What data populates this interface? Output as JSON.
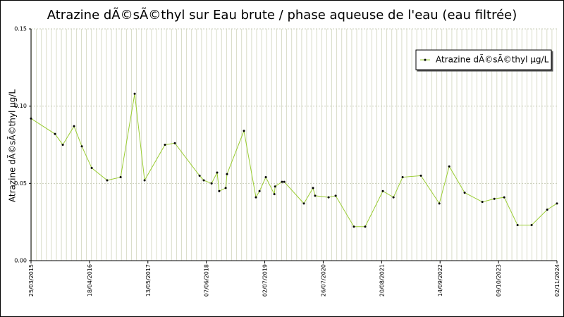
{
  "chart_data": {
    "type": "line",
    "title": "Atrazine dÃ©sÃ©thyl sur Eau brute / phase aqueuse de l'eau (eau filtrée)",
    "y_label": "Atrazine dÃ©sÃ©thyl µg/L",
    "x": [
      "2015-03-25",
      "2015-09-01",
      "2015-10-23",
      "2016-01-06",
      "2016-02-27",
      "2016-05-03",
      "2016-08-14",
      "2016-11-12",
      "2017-02-14",
      "2017-04-21",
      "2017-09-04",
      "2017-11-09",
      "2018-04-23",
      "2018-05-21",
      "2018-07-12",
      "2018-08-18",
      "2018-09-01",
      "2018-10-14",
      "2018-10-23",
      "2019-02-13",
      "2019-05-04",
      "2019-05-28",
      "2019-07-09",
      "2019-09-04",
      "2019-09-09",
      "2019-10-25",
      "2019-11-09",
      "2020-03-19",
      "2020-05-19",
      "2020-06-02",
      "2020-08-31",
      "2020-10-17",
      "2021-02-16",
      "2021-05-02",
      "2021-08-28",
      "2021-11-07",
      "2022-01-07",
      "2022-05-09",
      "2022-09-09",
      "2022-11-14",
      "2023-02-25",
      "2023-06-23",
      "2023-09-11",
      "2023-11-16",
      "2024-02-13",
      "2024-05-17",
      "2024-08-29",
      "2024-11-02"
    ],
    "series": [
      {
        "name": "Atrazine dÃ©sÃ©thyl µg/L",
        "color": "#9acd32",
        "marker_color": "#000000",
        "values": [
          0.092,
          0.082,
          0.075,
          0.087,
          0.074,
          0.06,
          0.052,
          0.054,
          0.108,
          0.052,
          0.075,
          0.076,
          0.055,
          0.052,
          0.05,
          0.057,
          0.045,
          0.047,
          0.056,
          0.084,
          0.041,
          0.045,
          0.054,
          0.043,
          0.048,
          0.051,
          0.051,
          0.037,
          0.047,
          0.042,
          0.041,
          0.042,
          0.022,
          0.022,
          0.045,
          0.041,
          0.054,
          0.055,
          0.037,
          0.061,
          0.044,
          0.038,
          0.04,
          0.041,
          0.023,
          0.023,
          0.033,
          0.037
        ]
      }
    ],
    "xlim": [
      "2015-03-25",
      "2024-11-02"
    ],
    "xticks": [
      {
        "value": "2015-03-25",
        "label": "25/03/2015"
      },
      {
        "value": "2016-04-18",
        "label": "18/04/2016"
      },
      {
        "value": "2017-05-13",
        "label": "13/05/2017"
      },
      {
        "value": "2018-06-07",
        "label": "07/06/2018"
      },
      {
        "value": "2019-07-02",
        "label": "02/07/2019"
      },
      {
        "value": "2020-07-26",
        "label": "26/07/2020"
      },
      {
        "value": "2021-08-20",
        "label": "20/08/2021"
      },
      {
        "value": "2022-09-14",
        "label": "14/09/2022"
      },
      {
        "value": "2023-10-09",
        "label": "09/10/2023"
      },
      {
        "value": "2024-11-02",
        "label": "02/11/2024"
      }
    ],
    "ylim": [
      0,
      0.15
    ],
    "yticks": [
      {
        "value": 0,
        "label": "0.00"
      },
      0.05,
      {
        "value": 0.1,
        "label": "0.10"
      },
      0.15
    ],
    "grid": true,
    "legend": "upper right"
  }
}
